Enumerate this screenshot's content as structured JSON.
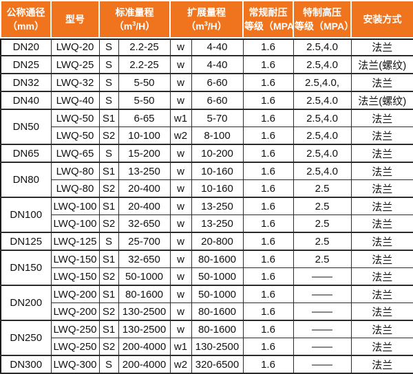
{
  "colors": {
    "header_bg": "#f0741e",
    "header_text": "#ffffff",
    "body_text": "#111111",
    "border": "#1a1a1a"
  },
  "table": {
    "headers": {
      "dn": {
        "line1": "公称通径",
        "line2": "（mm）"
      },
      "model": "型号",
      "std": {
        "line1": "标准量程",
        "pre": "（m",
        "sup": "3",
        "post": "/H）"
      },
      "ext": {
        "line1": "扩展量程",
        "pre": "（m",
        "sup": "3",
        "post": "/H）"
      },
      "normal": {
        "line1": "常规耐压",
        "line2": "等级（MPA）"
      },
      "high": {
        "line1": "特制高压",
        "line2": "等级（MPA）"
      },
      "install": "安装方式"
    },
    "rows": [
      {
        "dn": "DN20",
        "dn_span": 1,
        "model": "LWQ-20",
        "s": "S",
        "std": "2.2-25",
        "w": "w",
        "ext": "4-40",
        "normal": "1.6",
        "high": "2.5,4.0",
        "install": "法兰"
      },
      {
        "dn": "DN25",
        "dn_span": 1,
        "model": "LWQ-25",
        "s": "S",
        "std": "2.2-25",
        "w": "w",
        "ext": "4-40",
        "normal": "1.6",
        "high": "2.5,4.0",
        "install": "法兰(螺纹)"
      },
      {
        "dn": "DN32",
        "dn_span": 1,
        "model": "LWQ-32",
        "s": "S",
        "std": "5-50",
        "w": "w",
        "ext": "6-60",
        "normal": "1.6",
        "high": "2.5,4.0,",
        "install": "法兰"
      },
      {
        "dn": "DN40",
        "dn_span": 1,
        "model": "LWQ-40",
        "s": "S",
        "std": "5-50",
        "w": "w",
        "ext": "6-60",
        "normal": "1.6",
        "high": "2.5,4.0",
        "install": "法兰(螺纹)"
      },
      {
        "dn": "DN50",
        "dn_span": 2,
        "model": "LWQ-50",
        "s": "S1",
        "std": "6-65",
        "w": "w1",
        "ext": "5-70",
        "normal": "1.6",
        "high": "2.5,4.0",
        "install": "法兰"
      },
      {
        "dn": null,
        "model": "LWQ-50",
        "s": "S2",
        "std": "10-100",
        "w": "w2",
        "ext": "8-100",
        "normal": "1.6",
        "high": "2.5,4.0",
        "install": "法兰"
      },
      {
        "dn": "DN65",
        "dn_span": 1,
        "model": "LWQ-65",
        "s": "S",
        "std": "15-200",
        "w": "w",
        "ext": "10-200",
        "normal": "1.6",
        "high": "2.5,4.0",
        "install": "法兰"
      },
      {
        "dn": "DN80",
        "dn_span": 2,
        "model": "LWQ-80",
        "s": "S1",
        "std": "13-250",
        "w": "w",
        "ext": "10-160",
        "normal": "1.6",
        "high": "2.5,4.0",
        "install": "法兰"
      },
      {
        "dn": null,
        "model": "LWQ-80",
        "s": "S2",
        "std": "20-400",
        "w": "w",
        "ext": "10-160",
        "normal": "1.6",
        "high": "2.5",
        "install": "法兰"
      },
      {
        "dn": "DN100",
        "dn_span": 2,
        "model": "LWQ-100",
        "s": "S1",
        "std": "20-400",
        "w": "w",
        "ext": "13-250",
        "normal": "1.6",
        "high": "2.5",
        "install": "法兰"
      },
      {
        "dn": null,
        "model": "LWQ-100",
        "s": "S2",
        "std": "32-650",
        "w": "w",
        "ext": "13-250",
        "normal": "1.6",
        "high": "2.5",
        "install": "法兰"
      },
      {
        "dn": "DN125",
        "dn_span": 1,
        "model": "LWQ-125",
        "s": "S",
        "std": "25-700",
        "w": "w",
        "ext": "20-800",
        "normal": "1.6",
        "high": "2.5",
        "install": "法兰"
      },
      {
        "dn": "DN150",
        "dn_span": 2,
        "model": "LWQ-150",
        "s": "S1",
        "std": "32-650",
        "w": "w",
        "ext": "80-1600",
        "normal": "1.6",
        "high": "2.5",
        "install": "法兰"
      },
      {
        "dn": null,
        "model": "LWQ-150",
        "s": "S2",
        "std": "50-1000",
        "w": "w",
        "ext": "50-1000",
        "normal": "1.6",
        "high": "——",
        "install": "法兰"
      },
      {
        "dn": "DN200",
        "dn_span": 2,
        "model": "LWQ-200",
        "s": "S1",
        "std": "80-1600",
        "w": "w",
        "ext": "50-1000",
        "normal": "1.6",
        "high": "——",
        "install": "法兰"
      },
      {
        "dn": null,
        "model": "LWQ-200",
        "s": "S2",
        "std": "130-2500",
        "w": "w",
        "ext": "80-1600",
        "normal": "1.6",
        "high": "——",
        "install": "法兰"
      },
      {
        "dn": "DN250",
        "dn_span": 2,
        "model": "LWQ-250",
        "s": "S1",
        "std": "130-2500",
        "w": "w",
        "ext": "80-1600",
        "normal": "1.6",
        "high": "——",
        "install": "法兰"
      },
      {
        "dn": null,
        "model": "LWQ-250",
        "s": "S2",
        "std": "200-4000",
        "w": "w1",
        "ext": "130-2500",
        "normal": "1.6",
        "high": "——",
        "install": "法兰"
      },
      {
        "dn": "DN300",
        "dn_span": 1,
        "model": "LWQ-300",
        "s": "S",
        "std": "200-4000",
        "w": "w2",
        "ext": "320-6500",
        "normal": "1.6",
        "high": "——",
        "install": "法兰"
      }
    ]
  }
}
